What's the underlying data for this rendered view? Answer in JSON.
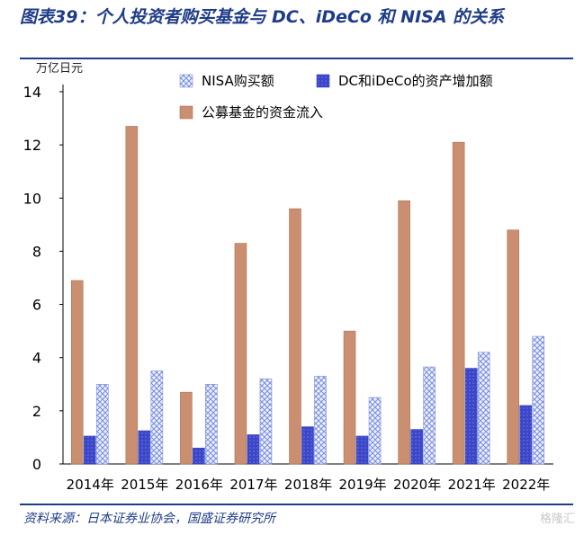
{
  "header": {
    "title": "图表39：个人投资者购买基金与 DC、iDeCo 和 NISA 的关系"
  },
  "footer": {
    "source": "资料来源：日本证券业协会，国盛证券研究所",
    "watermark": "格隆汇"
  },
  "chart_data": {
    "type": "bar",
    "categories": [
      "2014年",
      "2015年",
      "2016年",
      "2017年",
      "2018年",
      "2019年",
      "2020年",
      "2021年",
      "2022年"
    ],
    "ylabel": "万亿日元",
    "ylim": [
      0,
      14
    ],
    "yticks": [
      0,
      2,
      4,
      6,
      8,
      10,
      12,
      14
    ],
    "grid": false,
    "legend_position": "top-right",
    "series": [
      {
        "name": "公募基金的资金流入",
        "color": "#c98f70",
        "pattern": "solid",
        "values": [
          6.9,
          12.7,
          2.7,
          8.3,
          9.6,
          5.0,
          9.9,
          12.1,
          8.8
        ]
      },
      {
        "name": "DC和iDeCo的资产增加额",
        "color": "#3b47c8",
        "pattern": "dots",
        "values": [
          1.05,
          1.25,
          0.6,
          1.1,
          1.4,
          1.05,
          1.3,
          3.6,
          2.2
        ]
      },
      {
        "name": "NISA购买额",
        "color": "#7b8fe0",
        "pattern": "crosshatch",
        "values": [
          3.0,
          3.5,
          3.0,
          3.2,
          3.3,
          2.5,
          3.65,
          4.2,
          4.8
        ]
      }
    ],
    "legend_order": [
      2,
      1,
      0
    ]
  }
}
